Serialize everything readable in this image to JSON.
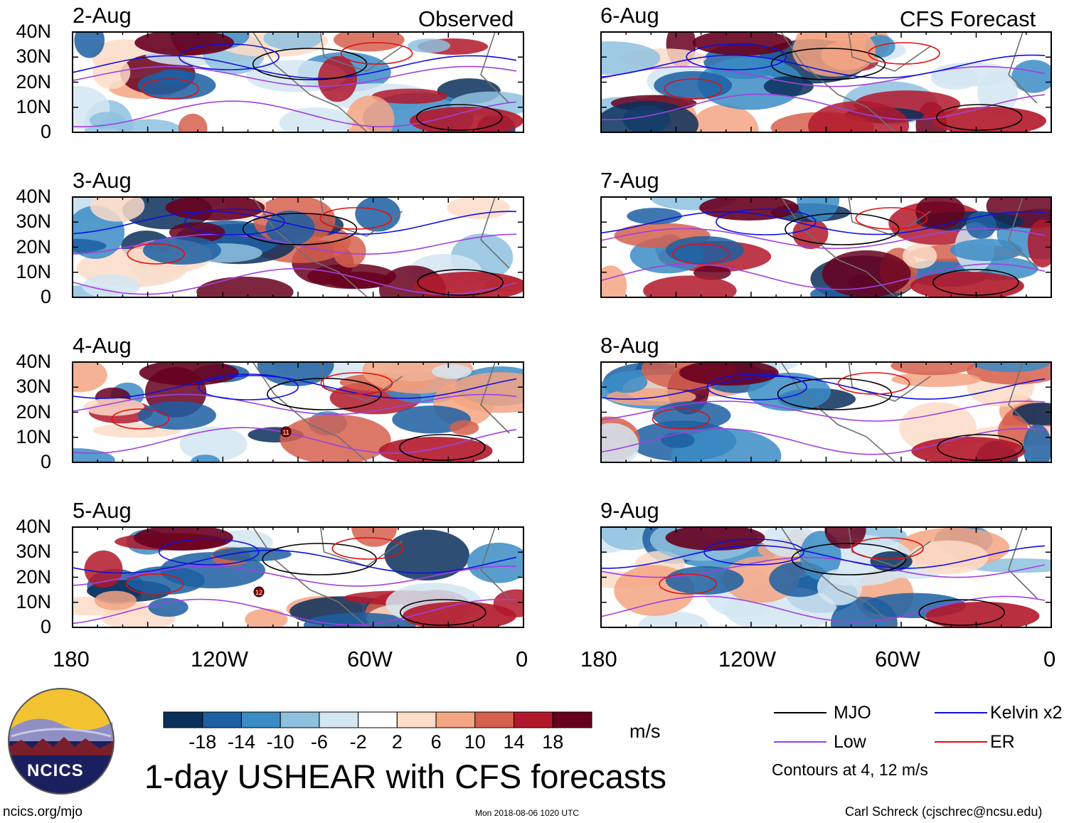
{
  "header": {
    "observed_label": "Observed",
    "forecast_label": "CFS Forecast"
  },
  "panels_left": [
    {
      "date": "2-Aug"
    },
    {
      "date": "3-Aug"
    },
    {
      "date": "4-Aug"
    },
    {
      "date": "5-Aug"
    }
  ],
  "panels_right": [
    {
      "date": "6-Aug"
    },
    {
      "date": "7-Aug"
    },
    {
      "date": "8-Aug"
    },
    {
      "date": "9-Aug"
    }
  ],
  "latitude_labels": [
    "40N",
    "30N",
    "20N",
    "10N",
    "0"
  ],
  "longitude_labels": [
    "180",
    "120W",
    "60W",
    "0"
  ],
  "colorbar": {
    "ticks": [
      "-18",
      "-14",
      "-10",
      "-6",
      "-2",
      "2",
      "6",
      "10",
      "14",
      "18"
    ],
    "colors": [
      "#0b2f5b",
      "#1c5fa2",
      "#3b8cc5",
      "#8ec1df",
      "#d3e6f2",
      "#ffffff",
      "#fddcc8",
      "#f4a582",
      "#d6604d",
      "#b2182b",
      "#67001f"
    ],
    "units": "m/s"
  },
  "legend": {
    "mjo": "MJO",
    "kelvin": "Kelvin x2",
    "low": "Low",
    "er": "ER",
    "contours_note": "Contours at 4, 12 m/s",
    "colors": {
      "mjo": "#000000",
      "kelvin": "#1010dd",
      "low": "#a040e0",
      "er": "#e01010"
    }
  },
  "title": "1-day USHEAR with CFS forecasts",
  "logo_text": "NCICS",
  "footer": {
    "url": "ncics.org/mjo",
    "timestamp": "Mon 2018-08-06 1020 UTC",
    "author": "Carl Schreck (cjschrec@ncsu.edu)"
  },
  "storm_markers": [
    "11",
    "12"
  ]
}
